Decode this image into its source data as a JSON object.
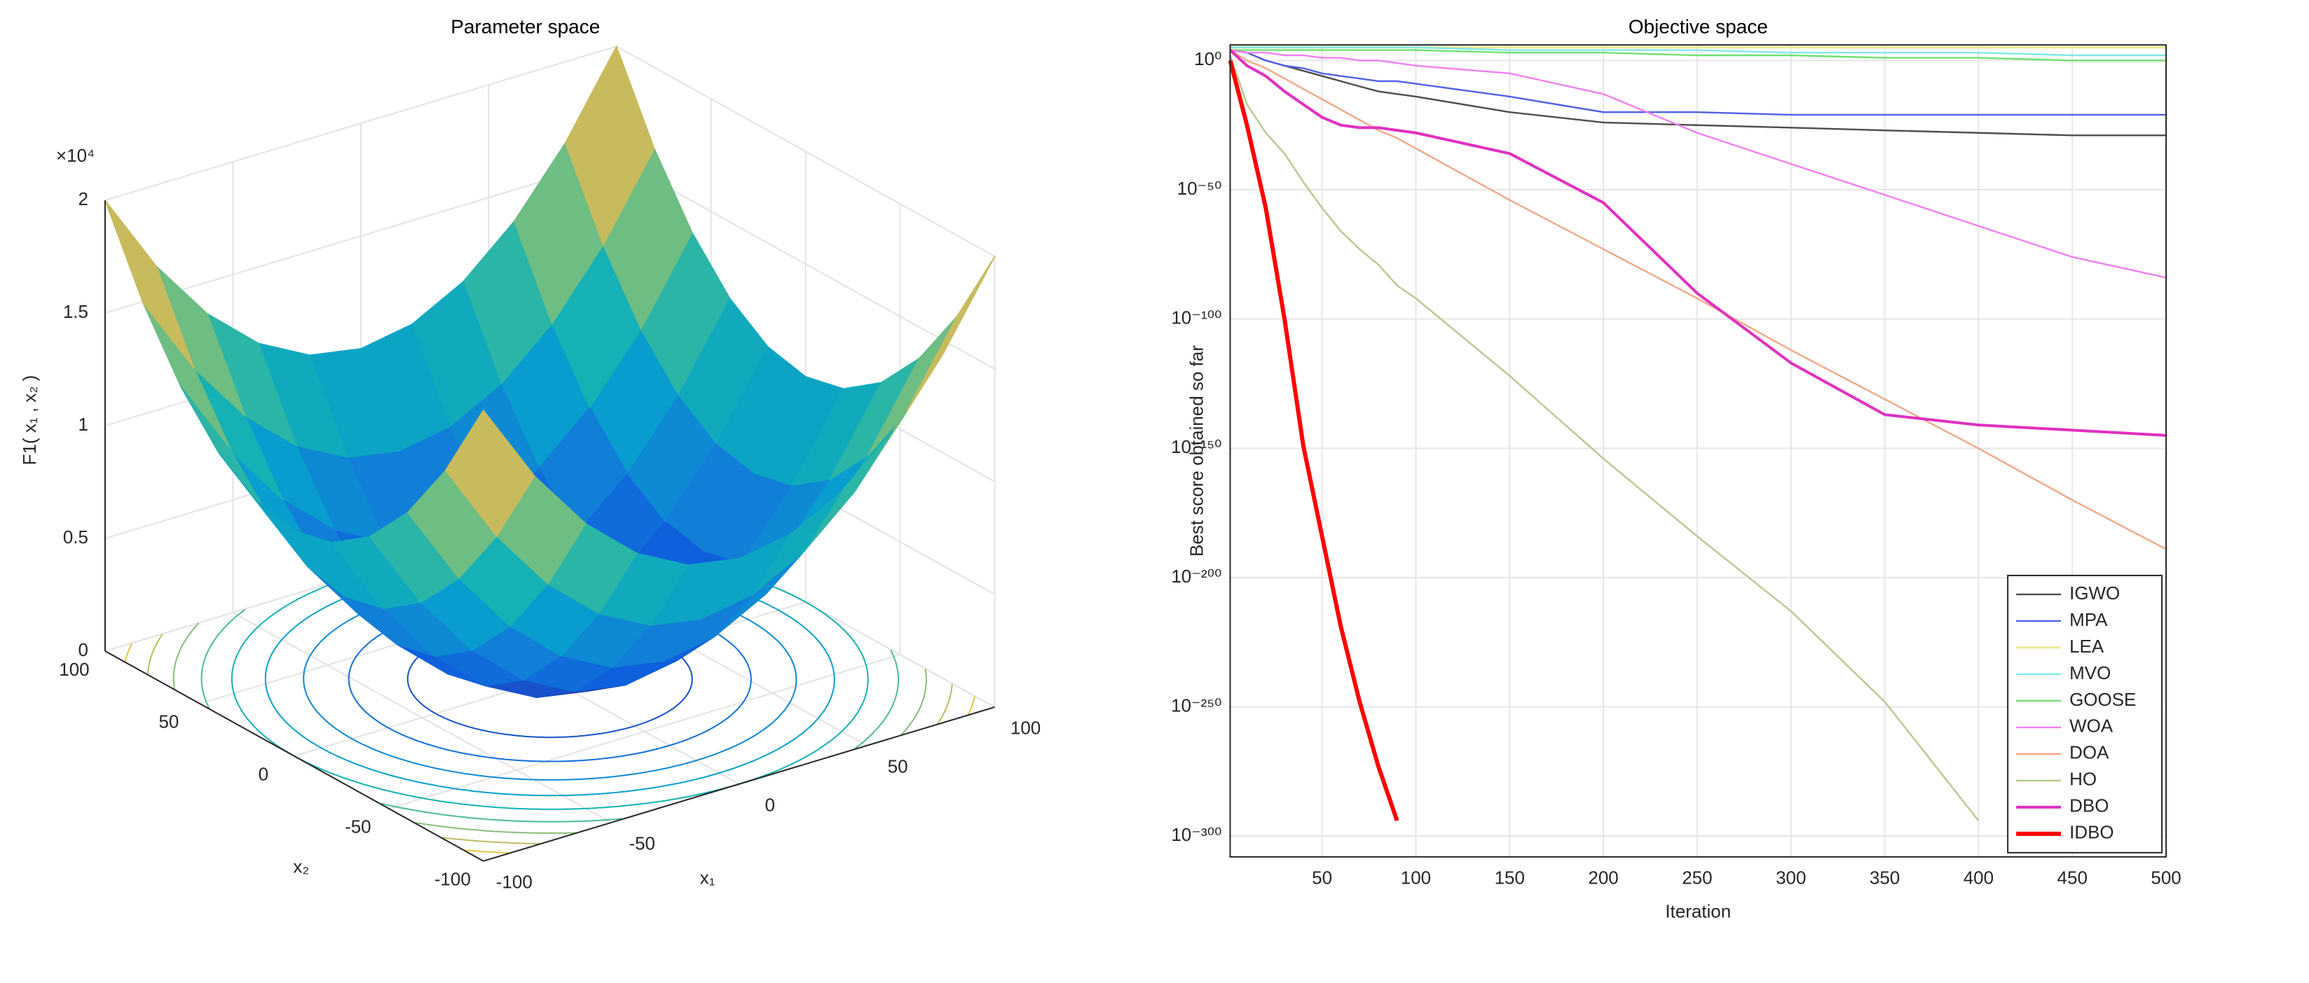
{
  "chart_data": [
    {
      "type": "surface",
      "title": "Parameter space",
      "xlabel": "x₁",
      "ylabel": "x₂",
      "zlabel": "F1( x₁ , x₂ )",
      "x": [
        -100,
        -80,
        -60,
        -40,
        -20,
        0,
        20,
        40,
        60,
        80,
        100
      ],
      "y": [
        -100,
        -80,
        -60,
        -40,
        -20,
        0,
        20,
        40,
        60,
        80,
        100
      ],
      "z": [
        [
          20000,
          16400,
          13600,
          11600,
          10400,
          10000,
          10400,
          11600,
          13600,
          16400,
          20000
        ],
        [
          16400,
          12800,
          10000,
          8000,
          6800,
          6400,
          6800,
          8000,
          10000,
          12800,
          16400
        ],
        [
          13600,
          10000,
          7200,
          5200,
          4000,
          3600,
          4000,
          5200,
          7200,
          10000,
          13600
        ],
        [
          11600,
          8000,
          5200,
          3200,
          2000,
          1600,
          2000,
          3200,
          5200,
          8000,
          11600
        ],
        [
          10400,
          6800,
          4000,
          2000,
          800,
          400,
          800,
          2000,
          4000,
          6800,
          10400
        ],
        [
          10000,
          6400,
          3600,
          1600,
          400,
          0,
          400,
          1600,
          3600,
          6400,
          10000
        ],
        [
          10400,
          6800,
          4000,
          2000,
          800,
          400,
          800,
          2000,
          4000,
          6800,
          10400
        ],
        [
          11600,
          8000,
          5200,
          3200,
          2000,
          1600,
          2000,
          3200,
          5200,
          8000,
          11600
        ],
        [
          13600,
          10000,
          7200,
          5200,
          4000,
          3600,
          4000,
          5200,
          7200,
          10000,
          13600
        ],
        [
          16400,
          12800,
          10000,
          8000,
          6800,
          6400,
          6800,
          8000,
          10000,
          12800,
          16400
        ],
        [
          20000,
          16400,
          13600,
          11600,
          10400,
          10000,
          10400,
          11600,
          13600,
          16400,
          20000
        ]
      ],
      "xlim": [
        -100,
        100
      ],
      "ylim": [
        -100,
        100
      ],
      "zlim": [
        0,
        20000
      ],
      "xticks": [
        -100,
        -50,
        0,
        50,
        100
      ],
      "yticks": [
        -100,
        -50,
        0,
        50,
        100
      ],
      "zticks": [
        0,
        {
          "value": 5000,
          "label": "0.5"
        },
        {
          "value": 10000,
          "label": "1"
        },
        {
          "value": 15000,
          "label": "1.5"
        },
        {
          "value": 20000,
          "label": "2"
        }
      ],
      "z_exponent": "×10⁴",
      "contour_levels": [
        2000,
        4000,
        6000,
        8000,
        10000,
        12000,
        14000,
        16000,
        18000
      ],
      "colormap": "parula",
      "grid": true
    },
    {
      "type": "line",
      "title": "Objective space",
      "xlabel": "Iteration",
      "ylabel": "Best score obtained so far",
      "yscale": "log",
      "grid": true,
      "legend": "lower right",
      "x": [
        1,
        10,
        20,
        30,
        40,
        50,
        60,
        70,
        80,
        90,
        100,
        150,
        200,
        250,
        300,
        350,
        400,
        450,
        500
      ],
      "xlim": [
        1,
        500
      ],
      "xticks": [
        50,
        100,
        150,
        200,
        250,
        300,
        350,
        400,
        450,
        500
      ],
      "ylim": [
        1e-308,
        1000000.0
      ],
      "yticks": [
        {
          "value": 1,
          "label": "10⁰"
        },
        {
          "value": 1e-50,
          "label": "10⁻⁵⁰"
        },
        {
          "value": 1e-100,
          "label": "10⁻¹⁰⁰"
        },
        {
          "value": 1e-150,
          "label": "10⁻¹⁵⁰"
        },
        {
          "value": 1e-200,
          "label": "10⁻²⁰⁰"
        },
        {
          "value": 1e-250,
          "label": "10⁻²⁵⁰"
        },
        {
          "value": 1e-300,
          "label": "10⁻³⁰⁰"
        }
      ],
      "series": [
        {
          "name": "IGWO",
          "color": "#4d4d4d",
          "linewidth": 1.2,
          "values": [
            10000.0,
            1000.0,
            1.0,
            0.01,
            0.0001,
            1e-06,
            1e-08,
            1e-10,
            1e-12,
            1e-13,
            1e-14,
            1e-20,
            1e-24,
            1e-25,
            1e-26,
            1e-27,
            1e-28,
            1e-29,
            1e-29
          ]
        },
        {
          "name": "MPA",
          "color": "#5060e8",
          "linewidth": 1.2,
          "values": [
            10000.0,
            1000.0,
            1.0,
            0.01,
            0.001,
            1e-05,
            1e-06,
            1e-07,
            1e-08,
            1e-08,
            1e-09,
            1e-14,
            1e-20,
            1e-20,
            1e-21,
            1e-21,
            1e-21,
            1e-21,
            1e-21
          ]
        },
        {
          "name": "LEA",
          "color": "#eeea90",
          "linewidth": 1.5,
          "values": [
            100000.0,
            100000.0,
            100000.0,
            100000.0,
            100000.0,
            100000.0,
            100000.0,
            100000.0,
            100000.0,
            100000.0,
            100000.0,
            100000.0,
            100000.0,
            100000.0,
            100000.0,
            100000.0,
            100000.0,
            100000.0,
            100000.0
          ]
        },
        {
          "name": "MVO",
          "color": "#80e8e8",
          "linewidth": 1.2,
          "values": [
            100000.0,
            100000.0,
            100000.0,
            100000.0,
            100000.0,
            100000.0,
            100000.0,
            100000.0,
            100000.0,
            100000.0,
            100000.0,
            10000.0,
            10000.0,
            10000.0,
            1000.0,
            1000.0,
            1000.0,
            100.0,
            100.0
          ]
        },
        {
          "name": "GOOSE",
          "color": "#70e070",
          "linewidth": 1.2,
          "values": [
            10000.0,
            10000.0,
            10000.0,
            10000.0,
            10000.0,
            10000.0,
            10000.0,
            10000.0,
            10000.0,
            10000.0,
            10000.0,
            1000.0,
            1000.0,
            100.0,
            100.0,
            10.0,
            10.0,
            1.0,
            1.0
          ]
        },
        {
          "name": "WOA",
          "color": "#f080f0",
          "linewidth": 1.2,
          "values": [
            10000.0,
            1000.0,
            1000.0,
            100.0,
            100.0,
            10.0,
            10.0,
            1.0,
            1.0,
            0.1,
            0.01,
            1e-05,
            1e-13,
            1e-28,
            1e-40,
            1e-52,
            1e-64,
            1e-76,
            1e-84
          ]
        },
        {
          "name": "DOA",
          "color": "#f0a888",
          "linewidth": 1.2,
          "values": [
            10000.0,
            1.0,
            0.001,
            1e-07,
            1e-11,
            1e-15,
            1e-19,
            1e-23,
            1e-27,
            1e-30,
            1e-34,
            1e-54,
            1e-73,
            1e-92,
            1e-112,
            1e-131,
            1e-150,
            1e-170,
            1e-189
          ]
        },
        {
          "name": "HO",
          "color": "#b8c890",
          "linewidth": 1.2,
          "values": [
            100.0,
            1e-17,
            1e-28,
            1e-36,
            1e-47,
            1e-57,
            1e-66,
            1e-73,
            1e-79,
            1e-87,
            1e-92,
            1e-122,
            1e-154,
            1e-184,
            1e-213,
            1e-248,
            1e-294,
            null,
            null
          ]
        },
        {
          "name": "DBO",
          "color": "#e030c0",
          "linewidth": 2,
          "values": [
            10000.0,
            0.01,
            1e-06,
            1e-12,
            1e-17,
            1e-22,
            1e-25,
            1e-26,
            1e-26,
            1e-27,
            1e-28,
            1e-36,
            1e-55,
            1e-90,
            1e-117,
            1e-137,
            1e-141,
            1e-143,
            1e-145
          ]
        },
        {
          "name": "IDBO",
          "color": "#ff0000",
          "linewidth": 3,
          "values": [
            1.0,
            1e-25,
            1e-57,
            1e-100,
            1e-149,
            1e-184,
            1e-219,
            1e-248,
            1e-273,
            1e-294,
            null,
            null,
            null,
            null,
            null,
            null,
            null,
            null,
            null
          ]
        }
      ]
    }
  ]
}
